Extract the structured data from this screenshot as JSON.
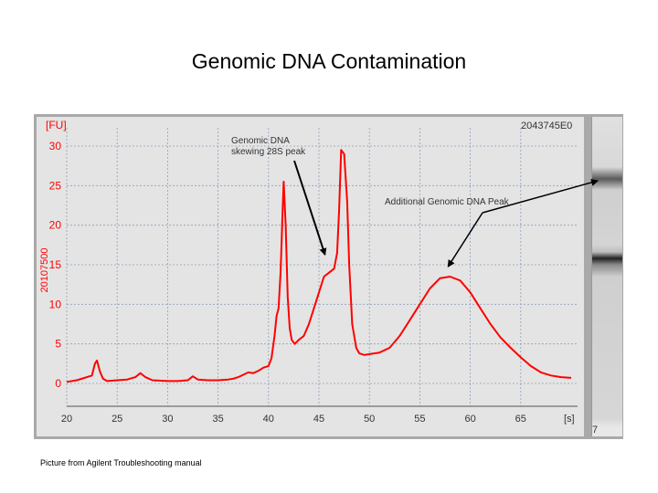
{
  "title": "Genomic DNA Contamination",
  "footer": "Picture from Agilent Troubleshooting manual",
  "sample_id": "2043745E0",
  "gel_lane_label": "7",
  "chart_data": {
    "type": "line",
    "title": "",
    "xlabel": "[s]",
    "ylabel": "[FU]",
    "side_label": "20107500",
    "xlim": [
      20,
      70
    ],
    "ylim": [
      0,
      30
    ],
    "xticks": [
      20,
      25,
      30,
      35,
      40,
      45,
      50,
      55,
      60,
      65
    ],
    "yticks": [
      0,
      5,
      10,
      15,
      20,
      25,
      30
    ],
    "grid": true,
    "color": "#ff0000",
    "series": [
      {
        "x": [
          20,
          21,
          22,
          22.5,
          22.8,
          23,
          23.3,
          23.6,
          24,
          25,
          26,
          26.8,
          27.3,
          27.8,
          28.5,
          30,
          31,
          32,
          32.5,
          33,
          34,
          35,
          36,
          36.5,
          37,
          37.5,
          38,
          38.5,
          39,
          39.5,
          40,
          40.3,
          40.6,
          40.8,
          41,
          41.2,
          41.3,
          41.4,
          41.5,
          41.7,
          41.9,
          42.1,
          42.3,
          42.6,
          43,
          43.5,
          44,
          44.5,
          45,
          45.5,
          46,
          46.5,
          46.8,
          47,
          47.2,
          47.5,
          47.8,
          48,
          48.3,
          48.7,
          49,
          49.5,
          50,
          51,
          52,
          53,
          54,
          55,
          56,
          57,
          58,
          59,
          60,
          61,
          62,
          63,
          64,
          65,
          66,
          67,
          68,
          69,
          70
        ],
        "y": [
          0.2,
          0.4,
          0.8,
          1.0,
          2.5,
          2.9,
          1.5,
          0.6,
          0.3,
          0.4,
          0.5,
          0.8,
          1.3,
          0.8,
          0.4,
          0.3,
          0.3,
          0.4,
          0.9,
          0.5,
          0.4,
          0.4,
          0.5,
          0.6,
          0.8,
          1.1,
          1.4,
          1.3,
          1.6,
          2.0,
          2.2,
          3.2,
          6.0,
          8.5,
          9.5,
          14.0,
          18.0,
          22.0,
          25.5,
          20.0,
          11.0,
          7.0,
          5.5,
          5.0,
          5.5,
          6.0,
          7.5,
          9.5,
          11.5,
          13.5,
          14.0,
          14.5,
          16.5,
          22.0,
          29.5,
          29.0,
          23.0,
          15.0,
          7.5,
          4.5,
          3.8,
          3.6,
          3.7,
          3.9,
          4.5,
          6.0,
          8.0,
          10.0,
          12.0,
          13.3,
          13.5,
          13.0,
          11.5,
          9.5,
          7.5,
          5.8,
          4.5,
          3.3,
          2.2,
          1.4,
          1.0,
          0.8,
          0.7
        ]
      }
    ],
    "annotations": [
      {
        "text_lines": [
          "Genomic DNA",
          "skewing 28S peak"
        ],
        "points_to": {
          "x": 45.6,
          "y": 16.5
        }
      },
      {
        "text_lines": [
          "Additional Genomic DNA Peak"
        ],
        "points_to": {
          "x": 57.8,
          "y": 14.3
        }
      }
    ]
  }
}
